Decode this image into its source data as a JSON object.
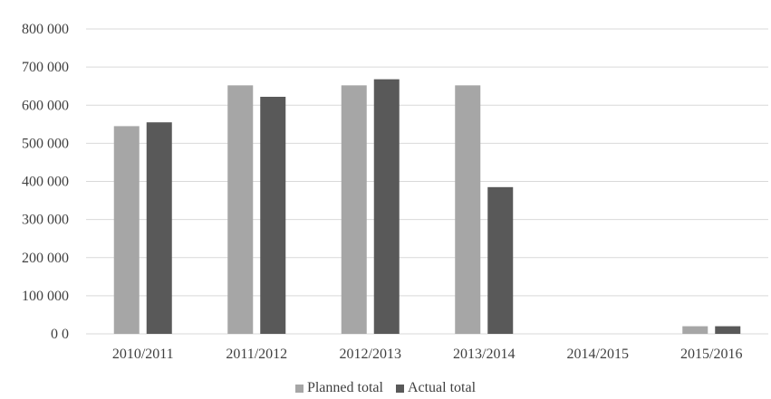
{
  "chart_data": {
    "type": "bar",
    "categories": [
      "2010/2011",
      "2011/2012",
      "2012/2013",
      "2013/2014",
      "2014/2015",
      "2015/2016"
    ],
    "series": [
      {
        "name": "Planned total",
        "color": "#a6a6a6",
        "values": [
          545000,
          652000,
          652000,
          652000,
          null,
          20000
        ]
      },
      {
        "name": "Actual total",
        "color": "#595959",
        "values": [
          555000,
          622000,
          668000,
          385000,
          null,
          20000
        ]
      }
    ],
    "y_ticks": [
      {
        "value": 0,
        "label": "0 0"
      },
      {
        "value": 100000,
        "label": "100 000"
      },
      {
        "value": 200000,
        "label": "200 000"
      },
      {
        "value": 300000,
        "label": "300 000"
      },
      {
        "value": 400000,
        "label": "400 000"
      },
      {
        "value": 500000,
        "label": "500 000"
      },
      {
        "value": 600000,
        "label": "600 000"
      },
      {
        "value": 700000,
        "label": "700 000"
      },
      {
        "value": 800000,
        "label": "800 000"
      }
    ],
    "ylim": [
      0,
      800000
    ],
    "grid": true,
    "legend_position": "bottom",
    "title": "",
    "xlabel": "",
    "ylabel": ""
  }
}
